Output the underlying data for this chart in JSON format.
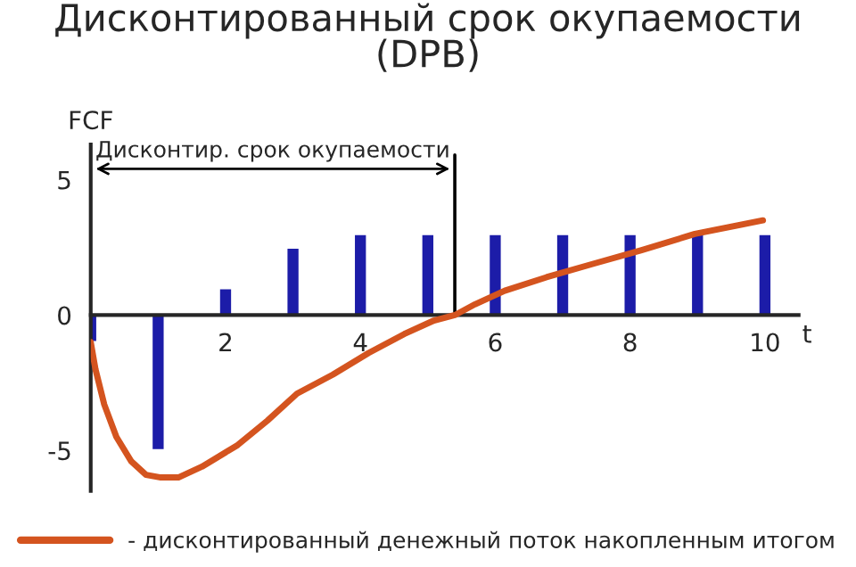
{
  "chart_data": {
    "type": "bar",
    "title": "Дисконтированный срок окупаемости\n(DPB)",
    "xlabel": "t",
    "ylabel": "FCF",
    "x": [
      0,
      1,
      2,
      3,
      4,
      5,
      6,
      7,
      8,
      9,
      10
    ],
    "series": [
      {
        "color": "#1c1ca8",
        "values": [
          -1,
          -5,
          1,
          2.5,
          3,
          3,
          3,
          3,
          3,
          3,
          3
        ]
      },
      {
        "type": "line",
        "name": "- дисконтированный денежный поток накопленным итогом",
        "color": "#d4541f",
        "x": [
          0,
          0.07,
          0.2,
          0.38,
          0.6,
          0.82,
          1.04,
          1.3,
          1.65,
          2.18,
          2.62,
          3.06,
          3.59,
          4.12,
          4.65,
          5.09,
          5.4,
          5.7,
          6.14,
          6.76,
          7.46,
          8.17,
          8.96,
          9.97
        ],
        "values": [
          -1,
          -2.0,
          -3.3,
          -4.5,
          -5.4,
          -5.9,
          -6.0,
          -6.0,
          -5.6,
          -4.8,
          -3.9,
          -2.9,
          -2.2,
          -1.4,
          -0.7,
          -0.2,
          0,
          0.4,
          0.9,
          1.4,
          1.9,
          2.4,
          3.0,
          3.5
        ]
      }
    ],
    "xlim": [
      0,
      10.5
    ],
    "ylim": [
      -6.5,
      6.3
    ],
    "xticks": [
      2,
      4,
      6,
      8,
      10
    ],
    "yticks": [
      -5,
      0,
      5
    ],
    "ref_lines": [
      {
        "axis": "x",
        "value": 5.4,
        "color": "#000000"
      }
    ],
    "annotations": [
      "Дисконтир. срок окупаемости"
    ],
    "grid": false,
    "legend": "bottom",
    "marker": "none",
    "line_style": "solid"
  }
}
